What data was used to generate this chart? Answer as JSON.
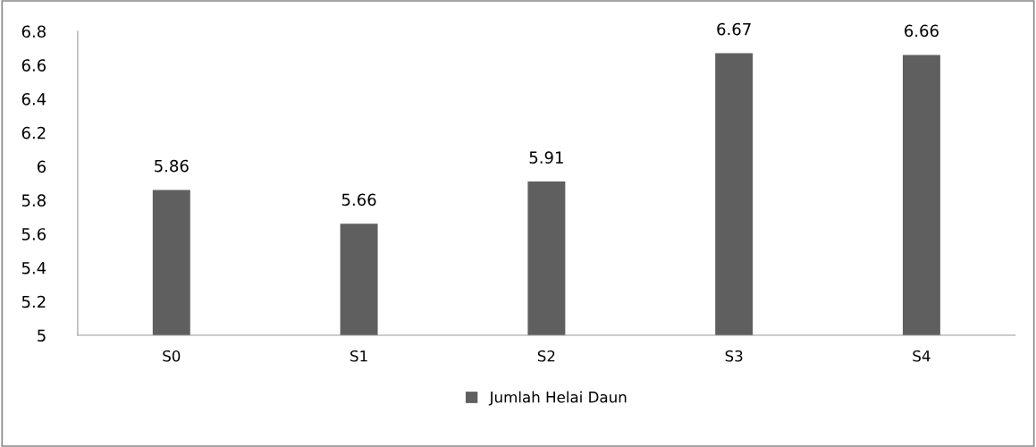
{
  "chart_data": {
    "type": "bar",
    "categories": [
      "S0",
      "S1",
      "S2",
      "S3",
      "S4"
    ],
    "series": [
      {
        "name": "Jumlah Helai Daun",
        "color": "#5f5f5f",
        "values": [
          5.86,
          5.66,
          5.91,
          6.67,
          6.66
        ]
      }
    ],
    "ylim": [
      5,
      6.8
    ],
    "yticks": [
      {
        "value": 5,
        "label": "5"
      },
      5.2,
      5.4,
      5.6,
      5.8,
      {
        "value": 6,
        "label": "6"
      },
      6.2,
      6.4,
      6.6,
      6.8
    ],
    "data_labels": true,
    "grid": false,
    "legend": "bottom"
  }
}
